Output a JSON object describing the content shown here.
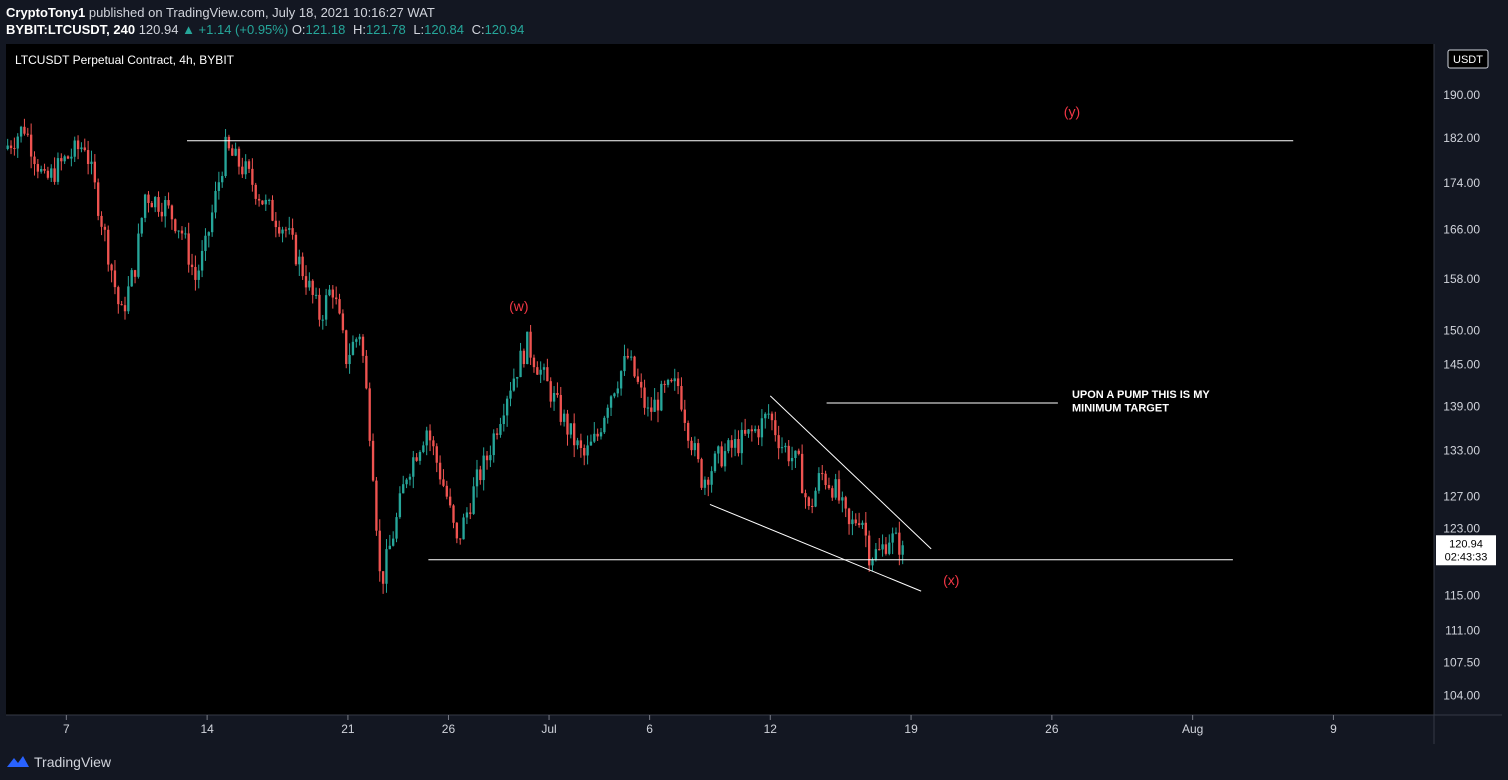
{
  "header": {
    "author": "CryptoTony1",
    "published_text": "published on TradingView.com, July 18, 2021 10:16:27 WAT",
    "symbol": "BYBIT:LTCUSDT, 240",
    "last": "120.94",
    "change": "▲ +1.14 (+0.95%)",
    "o_label": "O:",
    "o_value": "121.18",
    "h_label": "H:",
    "h_value": "121.78",
    "l_label": "L:",
    "l_value": "120.84",
    "c_label": "C:",
    "c_value": "120.94"
  },
  "chart_title": "LTCUSDT Perpetual Contract, 4h, BYBIT",
  "currency_label": "USDT",
  "last_price_label": "120.94",
  "countdown_label": "02:43:33",
  "footer": {
    "brand": "TradingView"
  },
  "colors": {
    "up": "#26a69a",
    "down": "#ef5350",
    "annotation": "#f23645",
    "line": "#ffffff"
  },
  "chart_data": {
    "type": "candlestick",
    "y_scale": "log",
    "ylim": [
      102,
      200
    ],
    "y_ticks": [
      "190.00",
      "182.00",
      "174.00",
      "166.00",
      "158.00",
      "150.00",
      "145.00",
      "139.00",
      "133.00",
      "127.00",
      "123.00",
      "115.00",
      "111.00",
      "107.50",
      "104.00"
    ],
    "x_ticks": [
      "7",
      "14",
      "21",
      "26",
      "Jul",
      "6",
      "12",
      "19",
      "26",
      "Aug",
      "9"
    ],
    "x_tick_dates": [
      "2021-06-07",
      "2021-06-14",
      "2021-06-21",
      "2021-06-26",
      "2021-07-01",
      "2021-07-06",
      "2021-07-12",
      "2021-07-19",
      "2021-07-26",
      "2021-08-02",
      "2021-08-09"
    ],
    "xlim": [
      "2021-06-04",
      "2021-08-14"
    ],
    "keypoints": [
      {
        "date": "2021-06-04",
        "price": 180
      },
      {
        "date": "2021-06-05",
        "price": 184
      },
      {
        "date": "2021-06-06",
        "price": 174
      },
      {
        "date": "2021-06-07",
        "price": 178
      },
      {
        "date": "2021-06-08",
        "price": 181
      },
      {
        "date": "2021-06-09",
        "price": 165
      },
      {
        "date": "2021-06-09.8",
        "price": 152
      },
      {
        "date": "2021-06-10.5",
        "price": 160
      },
      {
        "date": "2021-06-11",
        "price": 172
      },
      {
        "date": "2021-06-12",
        "price": 170
      },
      {
        "date": "2021-06-12.8",
        "price": 166
      },
      {
        "date": "2021-06-13.5",
        "price": 158
      },
      {
        "date": "2021-06-14",
        "price": 163
      },
      {
        "date": "2021-06-15",
        "price": 180
      },
      {
        "date": "2021-06-16",
        "price": 176
      },
      {
        "date": "2021-06-17",
        "price": 170
      },
      {
        "date": "2021-06-18",
        "price": 166
      },
      {
        "date": "2021-06-19",
        "price": 158
      },
      {
        "date": "2021-06-19.7",
        "price": 152
      },
      {
        "date": "2021-06-20.3",
        "price": 157
      },
      {
        "date": "2021-06-21",
        "price": 146
      },
      {
        "date": "2021-06-21.7",
        "price": 150
      },
      {
        "date": "2021-06-22.3",
        "price": 132
      },
      {
        "date": "2021-06-22.7",
        "price": 116
      },
      {
        "date": "2021-06-23.5",
        "price": 124
      },
      {
        "date": "2021-06-24",
        "price": 130
      },
      {
        "date": "2021-06-25",
        "price": 136
      },
      {
        "date": "2021-06-26",
        "price": 127
      },
      {
        "date": "2021-06-26.5",
        "price": 121
      },
      {
        "date": "2021-06-27.5",
        "price": 129
      },
      {
        "date": "2021-06-28",
        "price": 132
      },
      {
        "date": "2021-06-29",
        "price": 141
      },
      {
        "date": "2021-06-30",
        "price": 148
      },
      {
        "date": "2021-07-01",
        "price": 142
      },
      {
        "date": "2021-07-02",
        "price": 136
      },
      {
        "date": "2021-07-02.8",
        "price": 132
      },
      {
        "date": "2021-07-03.5",
        "price": 135
      },
      {
        "date": "2021-07-04",
        "price": 140
      },
      {
        "date": "2021-07-05",
        "price": 146
      },
      {
        "date": "2021-07-06",
        "price": 138
      },
      {
        "date": "2021-07-06.8",
        "price": 141
      },
      {
        "date": "2021-07-07.5",
        "price": 142
      },
      {
        "date": "2021-07-08",
        "price": 136
      },
      {
        "date": "2021-07-08.7",
        "price": 129
      },
      {
        "date": "2021-07-09.5",
        "price": 132
      },
      {
        "date": "2021-07-10.5",
        "price": 134
      },
      {
        "date": "2021-07-11.5",
        "price": 136
      },
      {
        "date": "2021-07-12",
        "price": 138
      },
      {
        "date": "2021-07-12.6",
        "price": 134
      },
      {
        "date": "2021-07-13.5",
        "price": 131
      },
      {
        "date": "2021-07-14",
        "price": 125
      },
      {
        "date": "2021-07-14.6",
        "price": 130
      },
      {
        "date": "2021-07-15.3",
        "price": 128
      },
      {
        "date": "2021-07-16",
        "price": 123
      },
      {
        "date": "2021-07-16.6",
        "price": 125
      },
      {
        "date": "2021-07-17",
        "price": 120
      },
      {
        "date": "2021-07-17.5",
        "price": 120
      },
      {
        "date": "2021-07-18",
        "price": 122
      },
      {
        "date": "2021-07-18.5",
        "price": 121
      }
    ],
    "trend_lines": [
      {
        "name": "resistance-line-y",
        "from": [
          "2021-06-13",
          181.5
        ],
        "to": [
          "2021-08-07",
          181.5
        ]
      },
      {
        "name": "support-line-x",
        "from": [
          "2021-06-25",
          119.2
        ],
        "to": [
          "2021-08-04",
          119.2
        ]
      },
      {
        "name": "wedge-upper-line",
        "from": [
          "2021-07-12",
          140.5
        ],
        "to": [
          "2021-07-20",
          120.5
        ]
      },
      {
        "name": "wedge-lower-line",
        "from": [
          "2021-07-09",
          126
        ],
        "to": [
          "2021-07-19.5",
          115.5
        ]
      },
      {
        "name": "target-line",
        "from": [
          "2021-07-14.8",
          139.5
        ],
        "to": [
          "2021-07-26.3",
          139.5
        ]
      }
    ],
    "annotations": [
      {
        "name": "wave-w-label",
        "text": "(w)",
        "date": "2021-06-29.5",
        "price": 153,
        "color": "annotation"
      },
      {
        "name": "wave-x-label",
        "text": "(x)",
        "date": "2021-07-21",
        "price": 116.2,
        "color": "annotation"
      },
      {
        "name": "wave-y-label",
        "text": "(y)",
        "date": "2021-07-27",
        "price": 186,
        "color": "annotation"
      },
      {
        "name": "target-note-line1",
        "text": "UPON A PUMP THIS IS MY",
        "date": "2021-07-27",
        "price": 140.2,
        "color": "line"
      },
      {
        "name": "target-note-line2",
        "text": "MINIMUM TARGET",
        "date": "2021-07-27",
        "price": 138.3,
        "color": "line"
      }
    ],
    "last_price": 120.94
  }
}
